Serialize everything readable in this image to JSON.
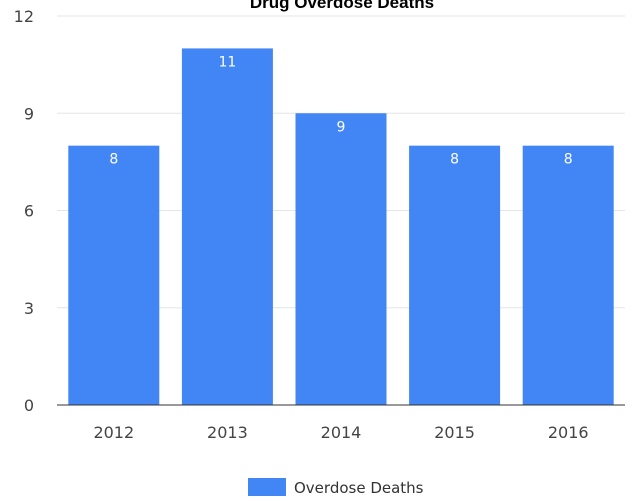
{
  "chart_data": {
    "type": "bar",
    "title": "Drug Overdose Deaths",
    "categories": [
      "2012",
      "2013",
      "2014",
      "2015",
      "2016"
    ],
    "series": [
      {
        "name": "Overdose Deaths",
        "values": [
          8,
          11,
          9,
          8,
          8
        ]
      }
    ],
    "ylim": [
      0,
      12
    ],
    "yticks": [
      0,
      3,
      6,
      9,
      12
    ],
    "xlabel": "",
    "ylabel": "",
    "grid": true,
    "legend_position": "bottom",
    "data_labels": true,
    "colors": {
      "bar": "#4285f4",
      "gridline": "#e6e6e6",
      "axis": "#333333",
      "label": "#ffffff"
    }
  }
}
